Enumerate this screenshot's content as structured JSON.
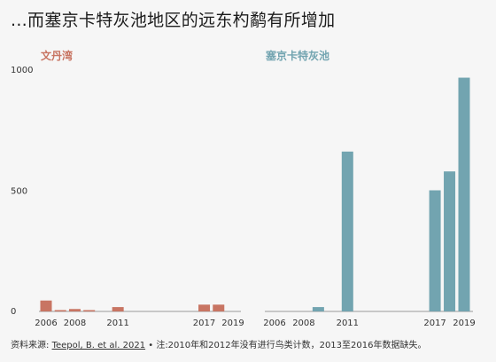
{
  "title": "...而塞京卡特灰池地区的远东杓鹬有所增加",
  "footer": {
    "source_label": "资料来源: ",
    "source_link": "Teepol, B. et al. 2021",
    "note": " • 注:2010年和2012年没有进行鸟类计数，2013至2016年数据缺失。"
  },
  "colors": {
    "left": "#c87563",
    "right": "#72a4b0"
  },
  "chart_data": [
    {
      "type": "bar",
      "title": "文丹湾",
      "x": [
        2006,
        2007,
        2008,
        2009,
        2011,
        2017,
        2018
      ],
      "values": [
        45,
        2,
        10,
        2,
        18,
        28,
        28
      ],
      "x_ticks": [
        2006,
        2008,
        2011,
        2017,
        2019
      ],
      "xlim": [
        2006,
        2019
      ],
      "ylim": [
        0,
        1000
      ],
      "y_ticks": [
        0,
        500,
        1000
      ],
      "grid": false
    },
    {
      "type": "bar",
      "title": "塞京卡特灰池",
      "x": [
        2006,
        2007,
        2008,
        2009,
        2011,
        2017,
        2018,
        2019
      ],
      "values": [
        0,
        0,
        0,
        18,
        660,
        500,
        578,
        965
      ],
      "x_ticks": [
        2006,
        2008,
        2011,
        2017,
        2019
      ],
      "xlim": [
        2006,
        2019
      ],
      "ylim": [
        0,
        1000
      ],
      "grid": false
    }
  ]
}
